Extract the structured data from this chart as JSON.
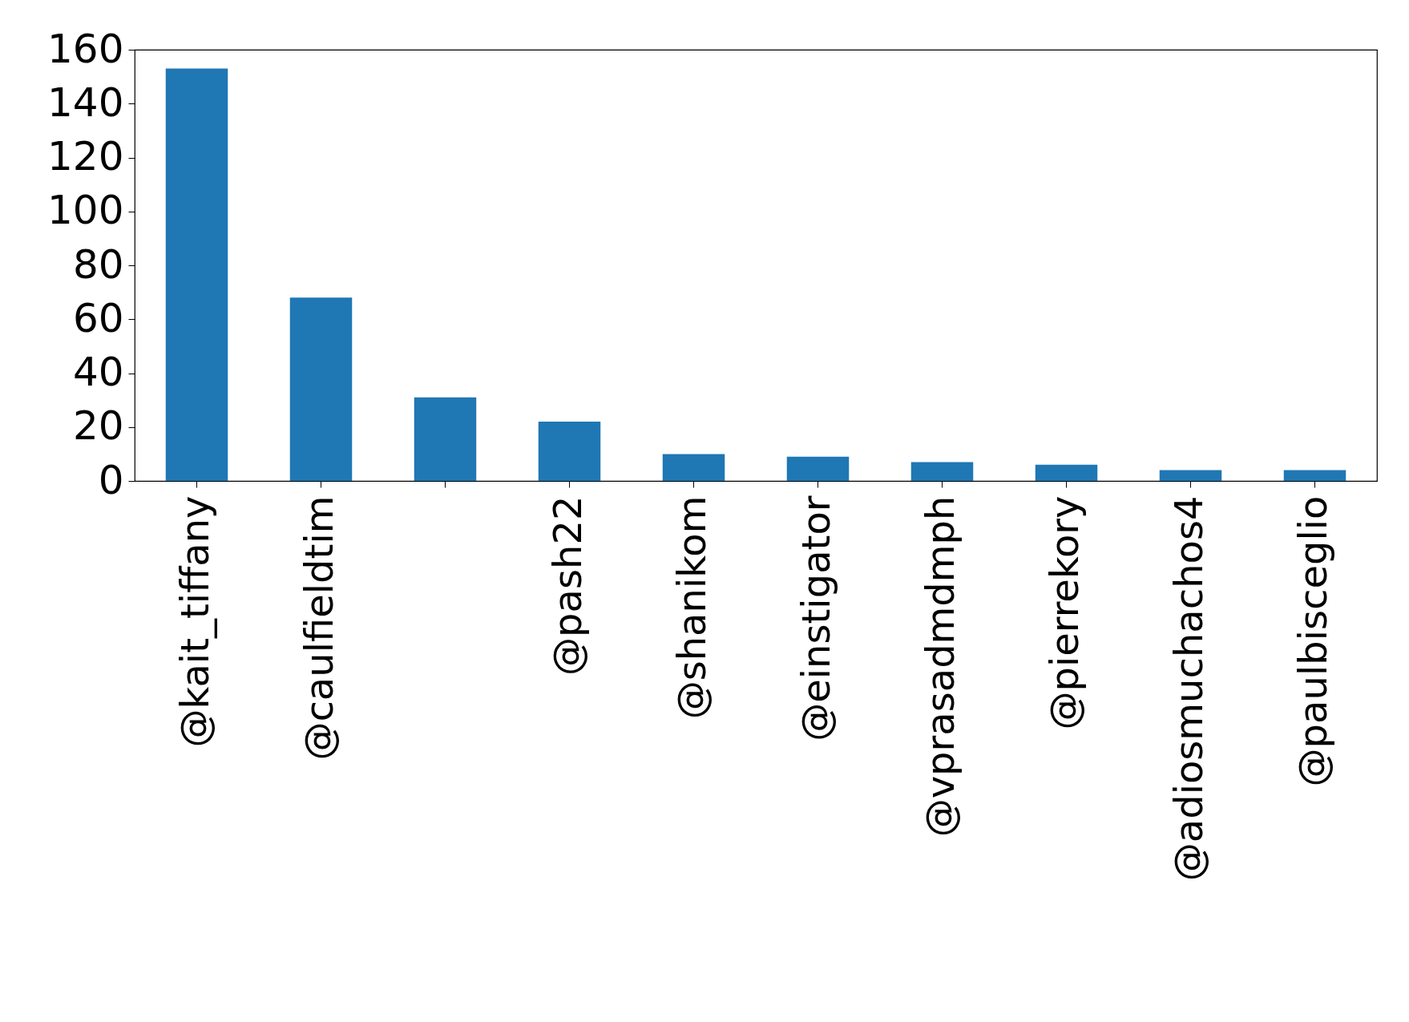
{
  "chart_data": {
    "type": "bar",
    "categories": [
      "@kait_tiffany",
      "@caulfieldtim",
      null,
      "@pash22",
      "@shanikom",
      "@einstigator",
      "@vprasadmdmph",
      "@pierrekory",
      "@adiosmuchachos4",
      "@paulbisceglio"
    ],
    "values": [
      153,
      68,
      31,
      22,
      10,
      9,
      7,
      6,
      4,
      4
    ],
    "color": "#1f77b4",
    "ylim": [
      0,
      160
    ],
    "yticks": [
      0,
      20,
      40,
      60,
      80,
      100,
      120,
      140,
      160
    ],
    "grid": false
  }
}
